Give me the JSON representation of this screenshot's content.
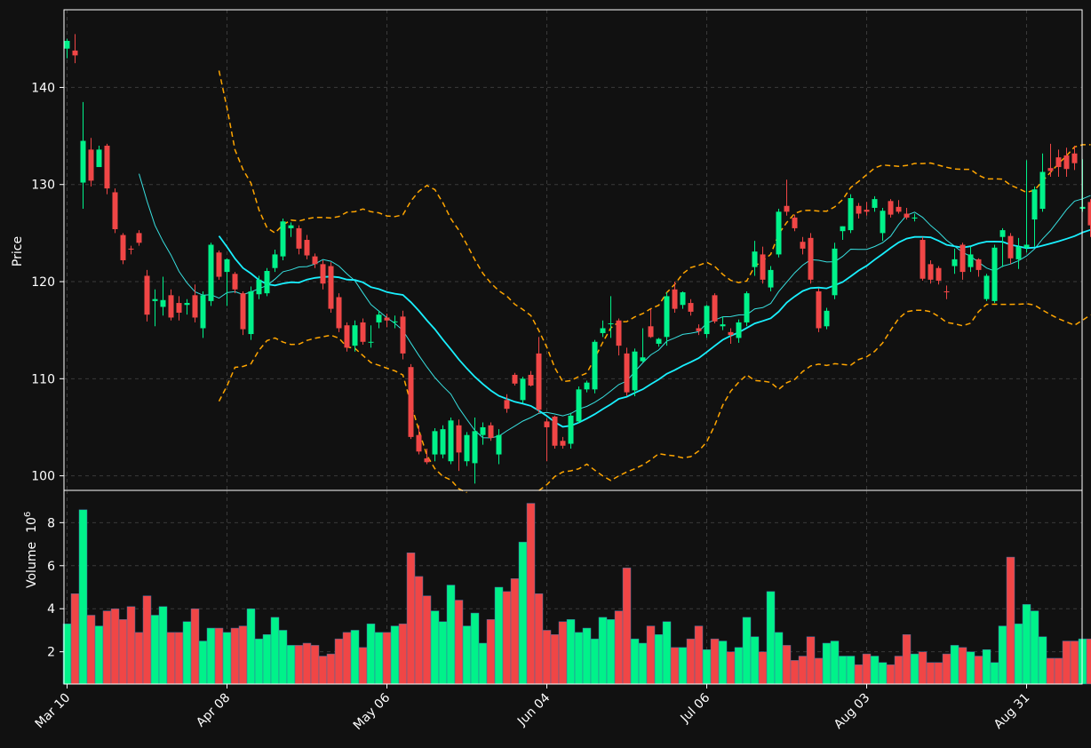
{
  "colors": {
    "background": "#111111",
    "up": "#00f28a",
    "down": "#f04646",
    "sma_fast": "#38e0e0",
    "sma_slow": "#19f0ff",
    "bands": "#ffa500",
    "grid": "#3a3a3a",
    "frame": "#ffffff"
  },
  "chart_data": {
    "type": "candlestick",
    "grid": true,
    "price_panel": {
      "ylabel": "Price",
      "ylim": [
        98.5,
        148
      ],
      "yticks": [
        100,
        110,
        120,
        130,
        140
      ]
    },
    "volume_panel": {
      "ylabel": "Volume",
      "ylabel_unit": "10",
      "ylabel_exp": "6",
      "ylim": [
        0.5,
        9.5
      ],
      "yticks": [
        2,
        4,
        6,
        8
      ]
    },
    "x_ticks": [
      {
        "index": 0,
        "label": "Mar 10"
      },
      {
        "index": 20,
        "label": "Apr 08"
      },
      {
        "index": 40,
        "label": "May 06"
      },
      {
        "index": 60,
        "label": "Jun 04"
      },
      {
        "index": 80,
        "label": "Jul 06"
      },
      {
        "index": 100,
        "label": "Aug 03"
      },
      {
        "index": 120,
        "label": "Aug 31"
      }
    ],
    "candles_ohlcv": [
      [
        144,
        145,
        143,
        144.8,
        3.3
      ],
      [
        143.8,
        145.5,
        142.5,
        143.3,
        4.7
      ],
      [
        130.2,
        138.5,
        127.5,
        134.5,
        8.6
      ],
      [
        133.6,
        134.8,
        129.8,
        130.4,
        3.7
      ],
      [
        131.8,
        134,
        131.8,
        133.6,
        3.2
      ],
      [
        134,
        134.2,
        129,
        129.6,
        3.9
      ],
      [
        129.2,
        129.6,
        125,
        125.4,
        4.0
      ],
      [
        124.8,
        125,
        121.8,
        122.2,
        3.5
      ],
      [
        123.4,
        123.7,
        122.8,
        123.3,
        4.1
      ],
      [
        125,
        125.3,
        123.7,
        124,
        2.9
      ],
      [
        120.6,
        121.2,
        115.9,
        116.6,
        4.6
      ],
      [
        118,
        119.2,
        115.4,
        118.2,
        3.7
      ],
      [
        117.4,
        120.5,
        116.5,
        118.1,
        4.1
      ],
      [
        118.6,
        119.2,
        116,
        116.3,
        2.9
      ],
      [
        117.8,
        118.5,
        116,
        116.8,
        2.9
      ],
      [
        117.6,
        118.2,
        116.6,
        117.8,
        3.4
      ],
      [
        118.6,
        119.7,
        115.8,
        116.3,
        4.0
      ],
      [
        115.2,
        119,
        114.2,
        118.6,
        2.5
      ],
      [
        118,
        124,
        117.5,
        123.8,
        3.1
      ],
      [
        123,
        123.2,
        120.2,
        120.5,
        3.1
      ],
      [
        121,
        122.4,
        117.5,
        122.3,
        2.9
      ],
      [
        120.8,
        121,
        118.8,
        119.2,
        3.1
      ],
      [
        118.8,
        119,
        114.5,
        115.1,
        3.2
      ],
      [
        114.6,
        119.5,
        114,
        119,
        4.0
      ],
      [
        118.7,
        120.6,
        118.2,
        120.2,
        2.6
      ],
      [
        118.8,
        121.4,
        118.5,
        121.1,
        2.8
      ],
      [
        121.4,
        123.3,
        121,
        122.8,
        3.6
      ],
      [
        122.6,
        126.5,
        122.2,
        126.2,
        3.0
      ],
      [
        125.5,
        126.1,
        124.6,
        125.8,
        2.3
      ],
      [
        125.5,
        125.8,
        122.8,
        123.4,
        2.3
      ],
      [
        124.3,
        124.8,
        122.3,
        122.7,
        2.4
      ],
      [
        122.6,
        122.9,
        121.4,
        121.8,
        2.3
      ],
      [
        121.8,
        122.2,
        119.2,
        119.8,
        1.8
      ],
      [
        121.6,
        122,
        116.8,
        117.2,
        1.9
      ],
      [
        118.4,
        118.8,
        114.8,
        115.2,
        2.6
      ],
      [
        115.5,
        115.8,
        112.8,
        113.2,
        2.9
      ],
      [
        113.4,
        116,
        112.8,
        115.5,
        3.0
      ],
      [
        115.8,
        116.2,
        113.5,
        113.8,
        2.2
      ],
      [
        113.8,
        115.5,
        113.2,
        113.8,
        3.3
      ],
      [
        115.8,
        117,
        115.2,
        116.6,
        2.9
      ],
      [
        116.3,
        116.7,
        115.3,
        116,
        2.9
      ],
      [
        115.8,
        116.5,
        115.2,
        115.9,
        3.2
      ],
      [
        116.4,
        117,
        112,
        112.6,
        3.3
      ],
      [
        111.2,
        111.5,
        103.8,
        104,
        6.6
      ],
      [
        104.2,
        105.2,
        102.2,
        102.5,
        5.5
      ],
      [
        101.8,
        102.8,
        101.2,
        101.4,
        4.6
      ],
      [
        102.2,
        104.9,
        101.5,
        104.6,
        3.9
      ],
      [
        102.2,
        105.2,
        101.8,
        104.8,
        3.4
      ],
      [
        101.5,
        106,
        101.2,
        105.7,
        5.1
      ],
      [
        105.2,
        105.8,
        100.5,
        102.4,
        4.4
      ],
      [
        101.5,
        104.5,
        101,
        104.2,
        3.2
      ],
      [
        101.3,
        106,
        99.2,
        104.6,
        3.8
      ],
      [
        104.2,
        105.5,
        103.2,
        105,
        2.4
      ],
      [
        105.2,
        105.5,
        103.6,
        103.9,
        3.5
      ],
      [
        102.2,
        104.8,
        101.2,
        104.2,
        5.0
      ],
      [
        107.8,
        108.4,
        106.5,
        106.9,
        4.8
      ],
      [
        110.4,
        110.6,
        109.3,
        109.5,
        5.4
      ],
      [
        107.8,
        110.2,
        107.5,
        110,
        7.1
      ],
      [
        110.4,
        110.8,
        109.2,
        109.3,
        8.9
      ],
      [
        112.6,
        114.3,
        106.5,
        106.8,
        4.7
      ],
      [
        105.6,
        105.9,
        101.5,
        105,
        3.0
      ],
      [
        106.1,
        106.2,
        102.8,
        103.1,
        2.8
      ],
      [
        103.6,
        104,
        102.8,
        103.1,
        3.4
      ],
      [
        103.3,
        106.5,
        102.8,
        106.2,
        3.5
      ],
      [
        105.6,
        109.2,
        105.4,
        108.9,
        2.9
      ],
      [
        108.9,
        109.8,
        108.6,
        109.6,
        3.1
      ],
      [
        108.9,
        114,
        108.5,
        113.8,
        2.6
      ],
      [
        114.7,
        116,
        114.3,
        115.2,
        3.6
      ],
      [
        115.7,
        118.5,
        114.2,
        115.7,
        3.5
      ],
      [
        116,
        116.2,
        112.4,
        113.4,
        3.9
      ],
      [
        112.6,
        113.2,
        108.2,
        108.6,
        5.9
      ],
      [
        108.8,
        113.1,
        108.2,
        112.8,
        2.6
      ],
      [
        111.8,
        115.2,
        111.7,
        112.2,
        2.4
      ],
      [
        115.4,
        117.2,
        114.2,
        114.3,
        3.2
      ],
      [
        113.6,
        114.2,
        113.3,
        114.1,
        2.8
      ],
      [
        114.3,
        118.9,
        113.4,
        118.5,
        3.4
      ],
      [
        119.2,
        120,
        116.8,
        117.2,
        2.2
      ],
      [
        117.6,
        119,
        117.2,
        118.9,
        2.2
      ],
      [
        117.8,
        118.2,
        116.5,
        116.9,
        2.6
      ],
      [
        115.2,
        115.6,
        114.5,
        114.9,
        3.2
      ],
      [
        114.6,
        117.6,
        114.2,
        117.5,
        2.1
      ],
      [
        118.6,
        118.8,
        115.7,
        115.9,
        2.6
      ],
      [
        115.4,
        116.4,
        115,
        115.6,
        2.5
      ],
      [
        114.8,
        115.2,
        113.6,
        114.5,
        2.0
      ],
      [
        114.2,
        116.1,
        113.7,
        115.8,
        2.2
      ],
      [
        115.8,
        119,
        115.4,
        118.8,
        3.6
      ],
      [
        121.5,
        124.2,
        120.6,
        123.1,
        2.7
      ],
      [
        122.8,
        123.6,
        119.8,
        120.2,
        2.0
      ],
      [
        119.4,
        121.6,
        119,
        121.2,
        4.8
      ],
      [
        122.8,
        127.5,
        122.5,
        127.2,
        2.9
      ],
      [
        127.8,
        130.5,
        126.8,
        127.2,
        2.3
      ],
      [
        126.6,
        126.9,
        125.2,
        125.5,
        1.6
      ],
      [
        124.1,
        124.6,
        122.8,
        123.4,
        1.8
      ],
      [
        124.5,
        125,
        119.8,
        120.2,
        2.7
      ],
      [
        119,
        119.3,
        114.8,
        115.2,
        1.7
      ],
      [
        115.4,
        117.3,
        115.1,
        117,
        2.4
      ],
      [
        118.6,
        124,
        118.2,
        123.4,
        2.5
      ],
      [
        125.2,
        125.7,
        124.3,
        125.7,
        1.8
      ],
      [
        125.3,
        129,
        125,
        128.6,
        1.8
      ],
      [
        127.8,
        128.1,
        126.5,
        127,
        1.4
      ],
      [
        127.4,
        128.2,
        126.8,
        127.2,
        1.9
      ],
      [
        127.6,
        128.8,
        127.2,
        128.5,
        1.8
      ],
      [
        125,
        127.6,
        124.2,
        127.3,
        1.5
      ],
      [
        128.3,
        128.5,
        126.6,
        126.9,
        1.4
      ],
      [
        127.7,
        128.4,
        127,
        127.2,
        1.8
      ],
      [
        127,
        127.6,
        126.4,
        126.6,
        2.8
      ],
      [
        126.5,
        127,
        126.2,
        126.6,
        1.9
      ],
      [
        124.3,
        124.6,
        120.1,
        120.3,
        2.0
      ],
      [
        121.8,
        122.2,
        119.8,
        120.2,
        1.5
      ],
      [
        121.4,
        121.6,
        119.7,
        120.1,
        1.5
      ],
      [
        119,
        119.6,
        118.2,
        118.9,
        1.9
      ],
      [
        121.6,
        123.4,
        120.8,
        122.3,
        2.3
      ],
      [
        123.8,
        124,
        120.2,
        121,
        2.2
      ],
      [
        121.5,
        123.6,
        121,
        122.8,
        2.0
      ],
      [
        122.3,
        122.4,
        120.5,
        121.2,
        1.8
      ],
      [
        118.2,
        120.8,
        118,
        120.6,
        2.1
      ],
      [
        118,
        123.8,
        117.8,
        123.5,
        1.5
      ],
      [
        124.6,
        125.5,
        121.5,
        125.3,
        3.2
      ],
      [
        124.7,
        125,
        121.8,
        122.4,
        6.4
      ],
      [
        122.3,
        124.5,
        121.3,
        123.6,
        3.3
      ],
      [
        123.5,
        132.5,
        123,
        123.8,
        4.2
      ],
      [
        126.4,
        129.8,
        123.6,
        129.5,
        3.9
      ],
      [
        127.5,
        133.2,
        127.2,
        131.3,
        2.7
      ],
      [
        131.7,
        134.2,
        130.8,
        131.4,
        1.7
      ],
      [
        132.8,
        133.6,
        130.8,
        131.8,
        1.7
      ],
      [
        133,
        133.8,
        130.8,
        131.6,
        2.5
      ],
      [
        133.2,
        134,
        131.5,
        132.2,
        2.5
      ],
      [
        127.5,
        132.6,
        127.2,
        127.7,
        2.6
      ],
      [
        128.2,
        128.5,
        124.6,
        125.8,
        2.6
      ]
    ]
  }
}
